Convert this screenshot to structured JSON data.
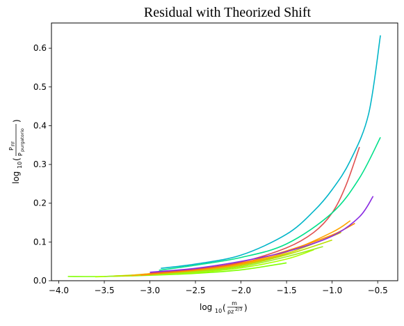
{
  "chart_data": {
    "type": "line",
    "title": "Residual with Theorized Shift",
    "xlabel": {
      "prefix": "log",
      "sub": "10",
      "num": "m",
      "den_base": "ρz",
      "den_sup": "2/3"
    },
    "ylabel": {
      "prefix": "log",
      "sub": "10",
      "num_base": "P",
      "num_sub": "FF",
      "den_base": "P",
      "den_sub": "purgatorio"
    },
    "xlim": [
      -4.08,
      -0.28
    ],
    "ylim": [
      0.0,
      0.665
    ],
    "xticks": [
      -4.0,
      -3.5,
      -3.0,
      -2.5,
      -2.0,
      -1.5,
      -1.0,
      -0.5
    ],
    "xtick_labels": [
      "−4.0",
      "−3.5",
      "−3.0",
      "−2.5",
      "−2.0",
      "−1.5",
      "−1.0",
      "−0.5"
    ],
    "yticks": [
      0.0,
      0.1,
      0.2,
      0.3,
      0.4,
      0.5,
      0.6
    ],
    "ytick_labels": [
      "0.0",
      "0.1",
      "0.2",
      "0.3",
      "0.4",
      "0.5",
      "0.6"
    ],
    "grid": false,
    "legend": "none",
    "series": [
      {
        "color": "#7fff00",
        "x": [
          -3.9,
          -3.5,
          -3.0,
          -2.5,
          -2.0,
          -1.5
        ],
        "y": [
          0.011,
          0.011,
          0.014,
          0.019,
          0.028,
          0.046
        ]
      },
      {
        "color": "#aaff00",
        "x": [
          -3.6,
          -3.0,
          -2.5,
          -2.0,
          -1.5,
          -1.2
        ],
        "y": [
          0.01,
          0.015,
          0.021,
          0.033,
          0.056,
          0.08
        ]
      },
      {
        "color": "#99ee22",
        "x": [
          -3.5,
          -3.0,
          -2.5,
          -2.0,
          -1.5,
          -1.1
        ],
        "y": [
          0.011,
          0.016,
          0.023,
          0.036,
          0.062,
          0.088
        ]
      },
      {
        "color": "#bbdd00",
        "x": [
          -3.4,
          -3.0,
          -2.5,
          -2.0,
          -1.5,
          -1.0
        ],
        "y": [
          0.012,
          0.017,
          0.025,
          0.039,
          0.067,
          0.105
        ]
      },
      {
        "color": "#cccc00",
        "x": [
          -3.3,
          -3.0,
          -2.5,
          -2.0,
          -1.5,
          -1.0,
          -0.9
        ],
        "y": [
          0.012,
          0.018,
          0.026,
          0.041,
          0.07,
          0.115,
          0.125
        ]
      },
      {
        "color": "#ffa500",
        "x": [
          -3.2,
          -3.0,
          -2.5,
          -2.0,
          -1.5,
          -1.0,
          -0.8
        ],
        "y": [
          0.013,
          0.018,
          0.027,
          0.043,
          0.074,
          0.125,
          0.155
        ]
      },
      {
        "color": "#ff8c00",
        "x": [
          -3.1,
          -2.5,
          -2.0,
          -1.5,
          -1.0,
          -0.75
        ],
        "y": [
          0.014,
          0.028,
          0.045,
          0.077,
          0.118,
          0.148
        ]
      },
      {
        "color": "#e05050",
        "x": [
          -3.0,
          -2.5,
          -2.0,
          -1.5,
          -1.2,
          -1.0,
          -0.85,
          -0.7
        ],
        "y": [
          0.02,
          0.03,
          0.048,
          0.085,
          0.125,
          0.175,
          0.245,
          0.345
        ]
      },
      {
        "color": "#8a2be2",
        "x": [
          -3.0,
          -2.5,
          -2.0,
          -1.5,
          -1.0,
          -0.7,
          -0.55
        ],
        "y": [
          0.022,
          0.032,
          0.05,
          0.075,
          0.115,
          0.165,
          0.218
        ]
      },
      {
        "color": "#00e08a",
        "x": [
          -2.9,
          -2.5,
          -2.0,
          -1.5,
          -1.0,
          -0.7,
          -0.47
        ],
        "y": [
          0.027,
          0.04,
          0.06,
          0.095,
          0.175,
          0.265,
          0.37
        ]
      },
      {
        "color": "#00b5c8",
        "x": [
          -2.88,
          -2.5,
          -2.0,
          -1.5,
          -1.2,
          -1.0,
          -0.8,
          -0.6,
          -0.47
        ],
        "y": [
          0.032,
          0.043,
          0.066,
          0.12,
          0.18,
          0.235,
          0.31,
          0.43,
          0.633
        ]
      }
    ]
  }
}
